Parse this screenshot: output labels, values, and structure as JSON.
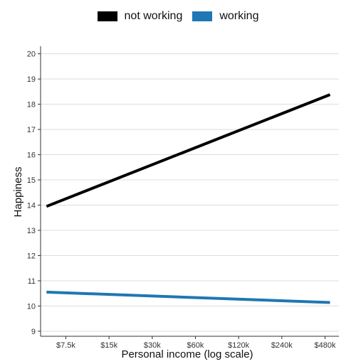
{
  "chart_data": {
    "type": "line",
    "xlabel": "Personal income (log scale)",
    "ylabel": "Happiness",
    "x_scale": "log",
    "x_ticks": [
      {
        "value": 7500,
        "label": "$7.5k"
      },
      {
        "value": 15000,
        "label": "$15k"
      },
      {
        "value": 30000,
        "label": "$30k"
      },
      {
        "value": 60000,
        "label": "$60k"
      },
      {
        "value": 120000,
        "label": "$120k"
      },
      {
        "value": 240000,
        "label": "$240k"
      },
      {
        "value": 480000,
        "label": "$480k"
      }
    ],
    "xlim": [
      5000,
      600000
    ],
    "ylim": [
      8.8,
      20.3
    ],
    "y_ticks": [
      9,
      10,
      11,
      12,
      13,
      14,
      15,
      16,
      17,
      18,
      19,
      20
    ],
    "grid": "horizontal",
    "legend_position": "top",
    "series": [
      {
        "name": "not working",
        "color": "#000000",
        "points": [
          [
            5500,
            13.95
          ],
          [
            520000,
            18.38
          ]
        ]
      },
      {
        "name": "working",
        "color": "#1f77b4",
        "points": [
          [
            5500,
            10.55
          ],
          [
            520000,
            10.14
          ]
        ]
      }
    ]
  }
}
